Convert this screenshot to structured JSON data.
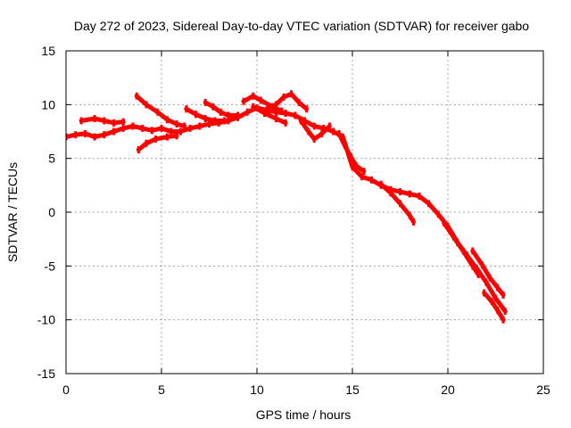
{
  "chart_data": {
    "type": "scatter",
    "title": "Day 272 of 2023, Sidereal Day-to-day VTEC variation (SDTVAR) for receiver gabo",
    "xlabel": "GPS time / hours",
    "ylabel": "SDTVAR / TECUs",
    "xlim": [
      0,
      25
    ],
    "ylim": [
      -15,
      15
    ],
    "xticks": [
      0,
      5,
      10,
      15,
      20,
      25
    ],
    "yticks": [
      -15,
      -10,
      -5,
      0,
      5,
      10,
      15
    ],
    "xtick_labels": [
      "0",
      "5",
      "10",
      "15",
      "20",
      "25"
    ],
    "ytick_labels": [
      "-15",
      "-10",
      "-5",
      "0",
      "5",
      "10",
      "15"
    ],
    "grid": true,
    "legend": "none",
    "series": [
      {
        "name": "main",
        "color": "#ff0000",
        "points": [
          [
            0.0,
            7.0
          ],
          [
            0.5,
            7.2
          ],
          [
            1.0,
            7.3
          ],
          [
            1.5,
            7.0
          ],
          [
            2.0,
            7.2
          ],
          [
            2.5,
            7.5
          ],
          [
            3.0,
            7.8
          ],
          [
            3.5,
            8.0
          ],
          [
            4.0,
            7.8
          ],
          [
            4.5,
            7.6
          ],
          [
            5.0,
            7.8
          ],
          [
            5.5,
            7.5
          ],
          [
            6.0,
            7.5
          ],
          [
            6.5,
            7.8
          ],
          [
            7.0,
            8.0
          ],
          [
            7.5,
            8.2
          ],
          [
            8.0,
            8.3
          ],
          [
            8.5,
            8.5
          ],
          [
            9.0,
            8.8
          ],
          [
            9.5,
            9.3
          ],
          [
            10.0,
            9.7
          ],
          [
            10.5,
            9.5
          ],
          [
            11.0,
            9.3
          ],
          [
            11.5,
            9.2
          ],
          [
            12.0,
            9.0
          ],
          [
            12.5,
            8.5
          ],
          [
            13.0,
            8.0
          ],
          [
            13.5,
            7.8
          ],
          [
            14.0,
            7.5
          ],
          [
            14.5,
            7.0
          ],
          [
            15.0,
            4.2
          ],
          [
            15.5,
            3.3
          ],
          [
            16.0,
            3.0
          ],
          [
            16.5,
            2.5
          ],
          [
            17.0,
            2.1
          ],
          [
            17.5,
            1.9
          ],
          [
            18.0,
            1.7
          ],
          [
            18.5,
            1.5
          ],
          [
            19.0,
            0.8
          ],
          [
            19.5,
            -0.2
          ],
          [
            20.0,
            -1.3
          ],
          [
            20.5,
            -2.8
          ],
          [
            21.0,
            -4.0
          ],
          [
            21.5,
            -5.2
          ],
          [
            22.0,
            -6.5
          ],
          [
            22.5,
            -8.0
          ],
          [
            23.0,
            -9.2
          ]
        ]
      },
      {
        "name": "upper-morning",
        "color": "#ff0000",
        "points": [
          [
            0.8,
            8.5
          ],
          [
            1.5,
            8.7
          ],
          [
            2.0,
            8.5
          ],
          [
            2.5,
            8.3
          ],
          [
            3.0,
            8.4
          ]
        ]
      },
      {
        "name": "rising-segment",
        "color": "#ff0000",
        "points": [
          [
            3.7,
            10.8
          ],
          [
            4.2,
            10.0
          ],
          [
            4.8,
            9.3
          ],
          [
            5.3,
            8.6
          ],
          [
            5.8,
            8.2
          ],
          [
            6.2,
            8.0
          ]
        ]
      },
      {
        "name": "lower-segment",
        "color": "#ff0000",
        "points": [
          [
            3.8,
            5.8
          ],
          [
            4.2,
            6.4
          ],
          [
            4.7,
            6.8
          ],
          [
            5.3,
            7.0
          ],
          [
            5.8,
            7.1
          ]
        ]
      },
      {
        "name": "morning-arc-a",
        "color": "#ff0000",
        "points": [
          [
            6.3,
            9.6
          ],
          [
            6.8,
            9.1
          ],
          [
            7.3,
            8.7
          ],
          [
            7.8,
            8.5
          ],
          [
            8.3,
            8.5
          ]
        ]
      },
      {
        "name": "morning-arc-b",
        "color": "#ff0000",
        "points": [
          [
            7.3,
            10.2
          ],
          [
            7.7,
            9.8
          ],
          [
            8.1,
            9.3
          ],
          [
            8.5,
            9.0
          ],
          [
            9.0,
            9.0
          ]
        ]
      },
      {
        "name": "noon-arc-a",
        "color": "#ff0000",
        "points": [
          [
            9.3,
            10.3
          ],
          [
            9.8,
            10.8
          ],
          [
            10.2,
            10.4
          ],
          [
            10.8,
            9.8
          ],
          [
            11.3,
            9.4
          ]
        ]
      },
      {
        "name": "noon-arc-b",
        "color": "#ff0000",
        "points": [
          [
            10.6,
            9.7
          ],
          [
            11.0,
            10.0
          ],
          [
            11.4,
            10.7
          ],
          [
            11.8,
            11.0
          ],
          [
            12.2,
            10.2
          ],
          [
            12.6,
            9.6
          ]
        ]
      },
      {
        "name": "noon-arc-c",
        "color": "#ff0000",
        "points": [
          [
            9.8,
            9.8
          ],
          [
            10.4,
            9.2
          ],
          [
            11.0,
            8.7
          ],
          [
            11.5,
            8.3
          ]
        ]
      },
      {
        "name": "afternoon-branch",
        "color": "#ff0000",
        "points": [
          [
            12.3,
            8.5
          ],
          [
            12.7,
            7.5
          ],
          [
            13.0,
            6.8
          ],
          [
            13.4,
            7.3
          ],
          [
            13.8,
            8.0
          ]
        ]
      },
      {
        "name": "afternoon-drop",
        "color": "#ff0000",
        "points": [
          [
            14.3,
            7.3
          ],
          [
            14.6,
            6.2
          ],
          [
            14.9,
            5.2
          ],
          [
            15.2,
            4.3
          ],
          [
            15.6,
            3.8
          ]
        ]
      },
      {
        "name": "evening-branch",
        "color": "#ff0000",
        "points": [
          [
            16.5,
            2.6
          ],
          [
            17.0,
            1.8
          ],
          [
            17.5,
            0.8
          ],
          [
            18.0,
            -0.3
          ],
          [
            18.2,
            -0.9
          ]
        ]
      },
      {
        "name": "night-branch-a",
        "color": "#ff0000",
        "points": [
          [
            19.8,
            -1.0
          ],
          [
            20.3,
            -2.3
          ],
          [
            20.8,
            -3.6
          ],
          [
            21.3,
            -5.0
          ],
          [
            21.6,
            -5.8
          ]
        ]
      },
      {
        "name": "night-branch-b",
        "color": "#ff0000",
        "points": [
          [
            21.3,
            -3.6
          ],
          [
            21.8,
            -4.9
          ],
          [
            22.2,
            -6.1
          ],
          [
            22.6,
            -7.0
          ],
          [
            22.9,
            -7.7
          ]
        ]
      },
      {
        "name": "night-branch-c",
        "color": "#ff0000",
        "points": [
          [
            21.9,
            -7.5
          ],
          [
            22.3,
            -8.3
          ],
          [
            22.6,
            -9.1
          ],
          [
            22.9,
            -10.0
          ]
        ]
      }
    ]
  }
}
